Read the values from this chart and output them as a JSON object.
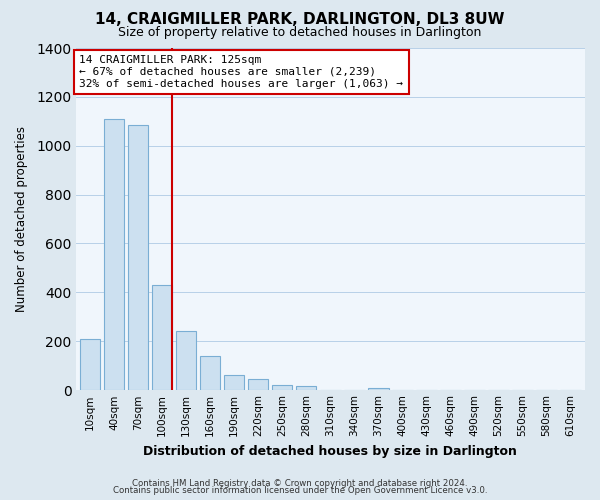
{
  "title": "14, CRAIGMILLER PARK, DARLINGTON, DL3 8UW",
  "subtitle": "Size of property relative to detached houses in Darlington",
  "xlabel": "Distribution of detached houses by size in Darlington",
  "ylabel": "Number of detached properties",
  "bar_labels": [
    "10sqm",
    "40sqm",
    "70sqm",
    "100sqm",
    "130sqm",
    "160sqm",
    "190sqm",
    "220sqm",
    "250sqm",
    "280sqm",
    "310sqm",
    "340sqm",
    "370sqm",
    "400sqm",
    "430sqm",
    "460sqm",
    "490sqm",
    "520sqm",
    "550sqm",
    "580sqm",
    "610sqm"
  ],
  "bar_values": [
    210,
    1110,
    1085,
    430,
    240,
    140,
    60,
    47,
    22,
    15,
    0,
    0,
    10,
    0,
    0,
    0,
    0,
    0,
    0,
    0,
    0
  ],
  "bar_color": "#cce0f0",
  "bar_edge_color": "#7aaed4",
  "vline_color": "#cc0000",
  "vline_x_index": 3,
  "annotation_text": "14 CRAIGMILLER PARK: 125sqm\n← 67% of detached houses are smaller (2,239)\n32% of semi-detached houses are larger (1,063) →",
  "annotation_box_color": "#ffffff",
  "annotation_box_edge": "#cc0000",
  "ylim": [
    0,
    1400
  ],
  "yticks": [
    0,
    200,
    400,
    600,
    800,
    1000,
    1200,
    1400
  ],
  "footer_line1": "Contains HM Land Registry data © Crown copyright and database right 2024.",
  "footer_line2": "Contains public sector information licensed under the Open Government Licence v3.0.",
  "bg_color": "#dde8f0",
  "plot_bg_color": "#f0f6fc",
  "grid_color": "#b8d0e8",
  "title_fontsize": 11,
  "subtitle_fontsize": 9
}
